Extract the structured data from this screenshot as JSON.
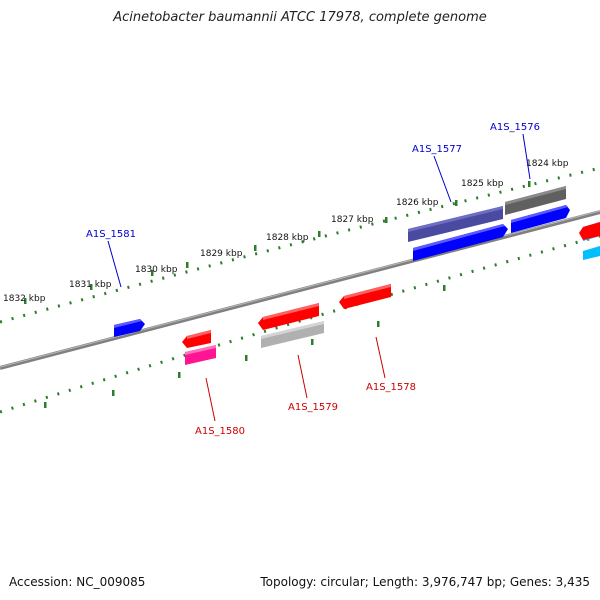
{
  "title": "Acinetobacter baumannii ATCC 17978, complete genome",
  "footer": {
    "accession": "Accession: NC_009085",
    "summary": "Topology: circular; Length: 3,976,747 bp; Genes: 3,435"
  },
  "colors": {
    "backbone": "#808080",
    "ruler": "#2e7d2e",
    "forward_gene": "#0000ff",
    "reverse_gene": "#ff0000",
    "forward_label": "#0000cc",
    "reverse_label": "#cc0000",
    "slate_gene": "#4a4aa0",
    "dark_gray_gene": "#606060",
    "light_gray_gene": "#b0b0b0",
    "magenta_gene": "#ff1493",
    "cyan_gene": "#00bfff"
  },
  "scale": {
    "tick_labels": [
      "1824 kbp",
      "1825 kbp",
      "1826 kbp",
      "1827 kbp",
      "1828 kbp",
      "1829 kbp",
      "1830 kbp",
      "1831 kbp",
      "1832 kbp"
    ]
  },
  "gene_labels": {
    "forward": [
      "A1S_1576",
      "A1S_1577",
      "A1S_1581"
    ],
    "reverse": [
      "A1S_1578",
      "A1S_1579",
      "A1S_1580"
    ]
  }
}
